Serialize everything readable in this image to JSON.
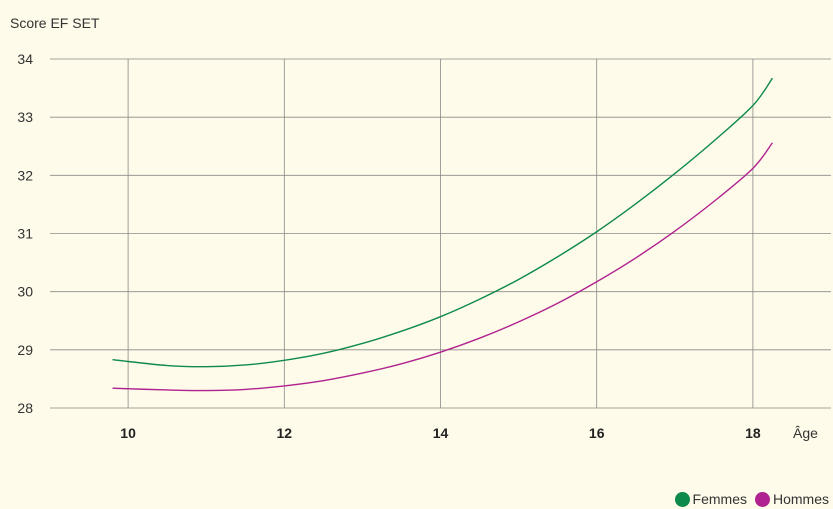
{
  "chart_data": {
    "type": "line",
    "ylabel": "Score EF SET",
    "xlabel": "Âge",
    "xlim": [
      9,
      19
    ],
    "ylim": [
      28,
      34
    ],
    "x_ticks": [
      "10",
      "12",
      "14",
      "16",
      "18"
    ],
    "y_ticks": [
      "28",
      "29",
      "30",
      "31",
      "32",
      "33",
      "34"
    ],
    "grid": true,
    "legend_position": "bottom-right",
    "series": [
      {
        "name": "Femmes",
        "color": "#0e8a4a",
        "x": [
          9.8,
          10.5,
          11.0,
          11.5,
          12.0,
          12.5,
          13.0,
          13.5,
          14.0,
          14.5,
          15.0,
          15.5,
          16.0,
          16.5,
          17.0,
          17.5,
          18.0,
          18.25
        ],
        "y": [
          28.83,
          28.73,
          28.71,
          28.74,
          28.82,
          28.94,
          29.11,
          29.32,
          29.57,
          29.87,
          30.21,
          30.6,
          31.03,
          31.51,
          32.03,
          32.59,
          33.2,
          33.67
        ]
      },
      {
        "name": "Hommes",
        "color": "#b0228f",
        "x": [
          9.8,
          10.5,
          11.0,
          11.5,
          12.0,
          12.5,
          13.0,
          13.5,
          14.0,
          14.5,
          15.0,
          15.5,
          16.0,
          16.5,
          17.0,
          17.5,
          18.0,
          18.25
        ],
        "y": [
          28.34,
          28.31,
          28.3,
          28.32,
          28.38,
          28.47,
          28.6,
          28.76,
          28.96,
          29.2,
          29.48,
          29.8,
          30.17,
          30.58,
          31.04,
          31.55,
          32.12,
          32.56
        ]
      }
    ]
  }
}
